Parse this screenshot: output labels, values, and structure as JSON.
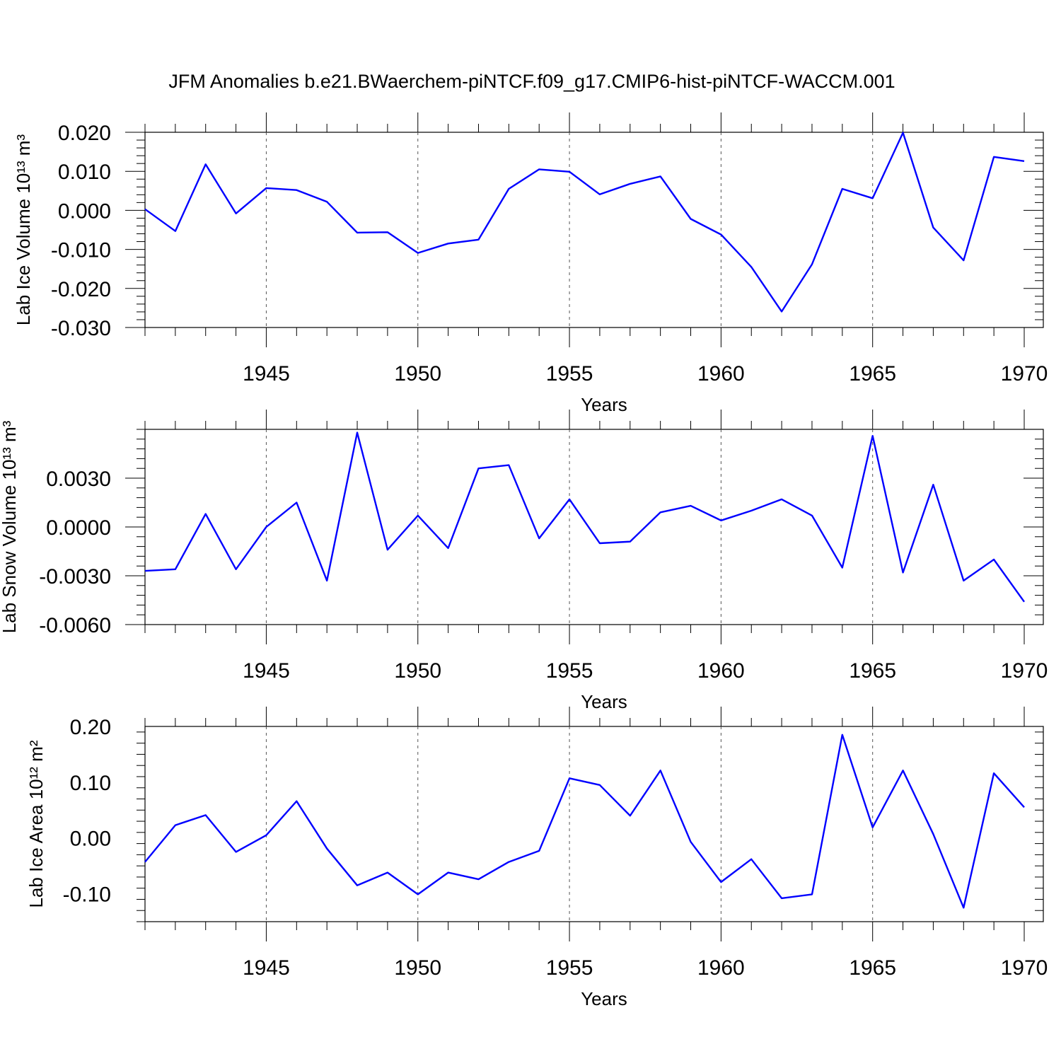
{
  "title": "JFM Anomalies b.e21.BWaerchem-piNTCF.f09_g17.CMIP6-hist-piNTCF-WACCM.001",
  "colors": {
    "series": "#0000ff",
    "axis": "#000000",
    "grid": "#555555"
  },
  "chart_data": [
    {
      "type": "line",
      "ylabel": "Lab Ice Volume 10¹³ m³",
      "xlabel": "Years",
      "xlim": [
        1941,
        1970
      ],
      "ylim": [
        -0.03,
        0.02
      ],
      "yticks": [
        -0.03,
        -0.02,
        -0.01,
        0.0,
        0.01,
        0.02
      ],
      "ytick_labels": [
        "-0.030",
        "-0.020",
        "-0.010",
        "0.000",
        "0.010",
        "0.020"
      ],
      "xticks": [
        1945,
        1950,
        1955,
        1960,
        1965,
        1970
      ],
      "xtick_labels": [
        "1945",
        "1950",
        "1955",
        "1960",
        "1965",
        "1970"
      ],
      "grid_x": [
        1945,
        1950,
        1955,
        1960,
        1965
      ],
      "x": [
        1941,
        1942,
        1943,
        1944,
        1945,
        1946,
        1947,
        1948,
        1949,
        1950,
        1951,
        1952,
        1953,
        1954,
        1955,
        1956,
        1957,
        1958,
        1959,
        1960,
        1961,
        1962,
        1963,
        1964,
        1965,
        1966,
        1967,
        1968,
        1969,
        1970
      ],
      "y": [
        0.0003,
        -0.0053,
        0.0118,
        -0.0008,
        0.0057,
        0.0052,
        0.0022,
        -0.0057,
        -0.0056,
        -0.0109,
        -0.0085,
        -0.0075,
        0.0055,
        0.0105,
        0.0099,
        0.0041,
        0.0068,
        0.0087,
        -0.0022,
        -0.0062,
        -0.0145,
        -0.0259,
        -0.0138,
        0.0055,
        0.0031,
        0.0199,
        -0.0044,
        -0.0128,
        0.0137,
        0.0126
      ]
    },
    {
      "type": "line",
      "ylabel": "Lab Snow Volume 10¹³ m³",
      "xlabel": "Years",
      "xlim": [
        1941,
        1970
      ],
      "ylim": [
        -0.006,
        0.006
      ],
      "yticks": [
        -0.006,
        -0.003,
        0.0,
        0.003
      ],
      "ytick_labels": [
        "-0.0060",
        "-0.0030",
        "0.0000",
        "0.0030"
      ],
      "xticks": [
        1945,
        1950,
        1955,
        1960,
        1965,
        1970
      ],
      "xtick_labels": [
        "1945",
        "1950",
        "1955",
        "1960",
        "1965",
        "1970"
      ],
      "grid_x": [
        1945,
        1950,
        1955,
        1960,
        1965
      ],
      "x": [
        1941,
        1942,
        1943,
        1944,
        1945,
        1946,
        1947,
        1948,
        1949,
        1950,
        1951,
        1952,
        1953,
        1954,
        1955,
        1956,
        1957,
        1958,
        1959,
        1960,
        1961,
        1962,
        1963,
        1964,
        1965,
        1966,
        1967,
        1968,
        1969,
        1970
      ],
      "y": [
        -0.0027,
        -0.0026,
        0.0008,
        -0.0026,
        0.0,
        0.0015,
        -0.0033,
        0.0058,
        -0.0014,
        0.0007,
        -0.0013,
        0.0036,
        0.0038,
        -0.0007,
        0.0017,
        -0.001,
        -0.0009,
        0.0009,
        0.0013,
        0.0004,
        0.001,
        0.0017,
        0.0007,
        -0.0025,
        0.0056,
        -0.0028,
        0.0026,
        -0.0033,
        -0.002,
        -0.0046
      ]
    },
    {
      "type": "line",
      "ylabel": "Lab Ice Area 10¹² m²",
      "xlabel": "Years",
      "xlim": [
        1941,
        1970
      ],
      "ylim": [
        -0.15,
        0.2
      ],
      "yticks": [
        -0.1,
        0.0,
        0.1,
        0.2
      ],
      "ytick_labels": [
        "-0.10",
        "0.00",
        "0.10",
        "0.20"
      ],
      "xticks": [
        1945,
        1950,
        1955,
        1960,
        1965,
        1970
      ],
      "xtick_labels": [
        "1945",
        "1950",
        "1955",
        "1960",
        "1965",
        "1970"
      ],
      "grid_x": [
        1945,
        1950,
        1955,
        1960,
        1965
      ],
      "x": [
        1941,
        1942,
        1943,
        1944,
        1945,
        1946,
        1947,
        1948,
        1949,
        1950,
        1951,
        1952,
        1953,
        1954,
        1955,
        1956,
        1957,
        1958,
        1959,
        1960,
        1961,
        1962,
        1963,
        1964,
        1965,
        1966,
        1967,
        1968,
        1969,
        1970
      ],
      "y": [
        -0.043,
        0.023,
        0.041,
        -0.025,
        0.005,
        0.066,
        -0.019,
        -0.085,
        -0.062,
        -0.101,
        -0.062,
        -0.074,
        -0.043,
        -0.023,
        0.107,
        0.095,
        0.04,
        0.121,
        -0.007,
        -0.079,
        -0.038,
        -0.108,
        -0.101,
        0.185,
        0.019,
        0.121,
        0.007,
        -0.125,
        0.116,
        0.055
      ]
    }
  ]
}
